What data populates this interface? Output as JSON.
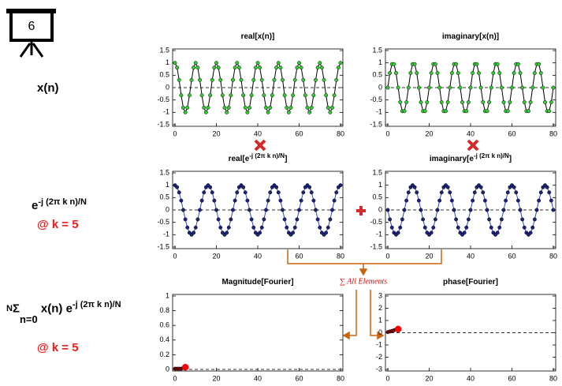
{
  "slide": {
    "number": "6"
  },
  "labels": {
    "signal": "x(n)",
    "kernel": {
      "base": "e",
      "exponent": "-j (2π k n)/N"
    },
    "k1": "@ k = 5",
    "sum": {
      "symbol": "Σ",
      "upper": "N",
      "lower": "n=0",
      "body": "x(n) e",
      "exponent": "-j (2π k n)/N"
    },
    "k2": "@ k = 5",
    "sum_note": "∑ All Elements"
  },
  "chart_data": [
    {
      "type": "line",
      "title": "real[x(n)]",
      "x": [
        0,
        1,
        2,
        3,
        4,
        5,
        6,
        7,
        8,
        9,
        10,
        11,
        12,
        13,
        14,
        15,
        16,
        17,
        18,
        19,
        20,
        21,
        22,
        23,
        24,
        25,
        26,
        27,
        28,
        29,
        30,
        31,
        32,
        33,
        34,
        35,
        36,
        37,
        38,
        39,
        40,
        41,
        42,
        43,
        44,
        45,
        46,
        47,
        48,
        49,
        50,
        51,
        52,
        53,
        54,
        55,
        56,
        57,
        58,
        59,
        60,
        61,
        62,
        63,
        64,
        65,
        66,
        67,
        68,
        69,
        70,
        71,
        72,
        73,
        74,
        75,
        76,
        77,
        78,
        79,
        80
      ],
      "series": [
        {
          "color": "#33cc33",
          "line_color": "#000000",
          "values": [
            1,
            0.81,
            0.31,
            -0.31,
            -0.81,
            -1,
            -0.81,
            -0.31,
            0.31,
            0.81,
            1,
            0.81,
            0.31,
            -0.31,
            -0.81,
            -1,
            -0.81,
            -0.31,
            0.31,
            0.81,
            1,
            0.81,
            0.31,
            -0.31,
            -0.81,
            -1,
            -0.81,
            -0.31,
            0.31,
            0.81,
            1,
            0.81,
            0.31,
            -0.31,
            -0.81,
            -1,
            -0.81,
            -0.31,
            0.31,
            0.81,
            1,
            0.81,
            0.31,
            -0.31,
            -0.81,
            -1,
            -0.81,
            -0.31,
            0.31,
            0.81,
            1,
            0.81,
            0.31,
            -0.31,
            -0.81,
            -1,
            -0.81,
            -0.31,
            0.31,
            0.81,
            1,
            0.81,
            0.31,
            -0.31,
            -0.81,
            -1,
            -0.81,
            -0.31,
            0.31,
            0.81,
            1,
            0.81,
            0.31,
            -0.31,
            -0.81,
            -1,
            -0.81,
            -0.31,
            0.31,
            0.81,
            1
          ]
        }
      ],
      "xlim": [
        0,
        80
      ],
      "xticks": [
        0,
        20,
        40,
        60,
        80
      ],
      "ylim": [
        -1.5,
        1.5
      ],
      "yticks": [
        -1.5,
        -1,
        -0.5,
        0,
        0.5,
        1,
        1.5
      ]
    },
    {
      "type": "line",
      "title": "imaginary[x(n)]",
      "x": [
        0,
        1,
        2,
        3,
        4,
        5,
        6,
        7,
        8,
        9,
        10,
        11,
        12,
        13,
        14,
        15,
        16,
        17,
        18,
        19,
        20,
        21,
        22,
        23,
        24,
        25,
        26,
        27,
        28,
        29,
        30,
        31,
        32,
        33,
        34,
        35,
        36,
        37,
        38,
        39,
        40,
        41,
        42,
        43,
        44,
        45,
        46,
        47,
        48,
        49,
        50,
        51,
        52,
        53,
        54,
        55,
        56,
        57,
        58,
        59,
        60,
        61,
        62,
        63,
        64,
        65,
        66,
        67,
        68,
        69,
        70,
        71,
        72,
        73,
        74,
        75,
        76,
        77,
        78,
        79,
        80
      ],
      "series": [
        {
          "color": "#33cc33",
          "line_color": "#000000",
          "values": [
            0,
            0.59,
            0.95,
            0.95,
            0.59,
            0,
            -0.59,
            -0.95,
            -0.95,
            -0.59,
            0,
            0.59,
            0.95,
            0.95,
            0.59,
            0,
            -0.59,
            -0.95,
            -0.95,
            -0.59,
            0,
            0.59,
            0.95,
            0.95,
            0.59,
            0,
            -0.59,
            -0.95,
            -0.95,
            -0.59,
            0,
            0.59,
            0.95,
            0.95,
            0.59,
            0,
            -0.59,
            -0.95,
            -0.95,
            -0.59,
            0,
            0.59,
            0.95,
            0.95,
            0.59,
            0,
            -0.59,
            -0.95,
            -0.95,
            -0.59,
            0,
            0.59,
            0.95,
            0.95,
            0.59,
            0,
            -0.59,
            -0.95,
            -0.95,
            -0.59,
            0,
            0.59,
            0.95,
            0.95,
            0.59,
            0,
            -0.59,
            -0.95,
            -0.95,
            -0.59,
            0,
            0.59,
            0.95,
            0.95,
            0.59,
            0,
            -0.59,
            -0.95,
            -0.95,
            -0.59,
            0
          ]
        }
      ],
      "xlim": [
        0,
        80
      ],
      "xticks": [
        0,
        20,
        40,
        60,
        80
      ],
      "ylim": [
        -1.5,
        1.5
      ],
      "yticks": [
        -1.5,
        -1,
        -0.5,
        0,
        0.5,
        1,
        1.5
      ]
    },
    {
      "type": "line",
      "title": [
        "real[e",
        "-j (2π k n)/N",
        "]"
      ],
      "x": [
        0,
        1,
        2,
        3,
        4,
        5,
        6,
        7,
        8,
        9,
        10,
        11,
        12,
        13,
        14,
        15,
        16,
        17,
        18,
        19,
        20,
        21,
        22,
        23,
        24,
        25,
        26,
        27,
        28,
        29,
        30,
        31,
        32,
        33,
        34,
        35,
        36,
        37,
        38,
        39,
        40,
        41,
        42,
        43,
        44,
        45,
        46,
        47,
        48,
        49,
        50,
        51,
        52,
        53,
        54,
        55,
        56,
        57,
        58,
        59,
        60,
        61,
        62,
        63,
        64,
        65,
        66,
        67,
        68,
        69,
        70,
        71,
        72,
        73,
        74,
        75,
        76,
        77,
        78,
        79,
        80
      ],
      "series": [
        {
          "color": "#1a237e",
          "line_color": "#3344cc",
          "values": [
            1,
            0.92,
            0.71,
            0.38,
            0,
            -0.38,
            -0.71,
            -0.92,
            -1,
            -0.92,
            -0.71,
            -0.38,
            0,
            0.38,
            0.71,
            0.92,
            1,
            0.92,
            0.71,
            0.38,
            0,
            -0.38,
            -0.71,
            -0.92,
            -1,
            -0.92,
            -0.71,
            -0.38,
            0,
            0.38,
            0.71,
            0.92,
            1,
            0.92,
            0.71,
            0.38,
            0,
            -0.38,
            -0.71,
            -0.92,
            -1,
            -0.92,
            -0.71,
            -0.38,
            0,
            0.38,
            0.71,
            0.92,
            1,
            0.92,
            0.71,
            0.38,
            0,
            -0.38,
            -0.71,
            -0.92,
            -1,
            -0.92,
            -0.71,
            -0.38,
            0,
            0.38,
            0.71,
            0.92,
            1,
            0.92,
            0.71,
            0.38,
            0,
            -0.38,
            -0.71,
            -0.92,
            -1,
            -0.92,
            -0.71,
            -0.38,
            0,
            0.38,
            0.71,
            0.92,
            1
          ]
        }
      ],
      "xlim": [
        0,
        80
      ],
      "xticks": [
        0,
        20,
        40,
        60,
        80
      ],
      "ylim": [
        -1.5,
        1.5
      ],
      "yticks": [
        -1.5,
        -1,
        -0.5,
        0,
        0.5,
        1,
        1.5
      ]
    },
    {
      "type": "line",
      "title": [
        "imaginary[e",
        "-j (2π k n)/N",
        "]"
      ],
      "x": [
        0,
        1,
        2,
        3,
        4,
        5,
        6,
        7,
        8,
        9,
        10,
        11,
        12,
        13,
        14,
        15,
        16,
        17,
        18,
        19,
        20,
        21,
        22,
        23,
        24,
        25,
        26,
        27,
        28,
        29,
        30,
        31,
        32,
        33,
        34,
        35,
        36,
        37,
        38,
        39,
        40,
        41,
        42,
        43,
        44,
        45,
        46,
        47,
        48,
        49,
        50,
        51,
        52,
        53,
        54,
        55,
        56,
        57,
        58,
        59,
        60,
        61,
        62,
        63,
        64,
        65,
        66,
        67,
        68,
        69,
        70,
        71,
        72,
        73,
        74,
        75,
        76,
        77,
        78,
        79,
        80
      ],
      "series": [
        {
          "color": "#1a237e",
          "line_color": "#3344cc",
          "values": [
            0,
            -0.38,
            -0.71,
            -0.92,
            -1,
            -0.92,
            -0.71,
            -0.38,
            0,
            0.38,
            0.71,
            0.92,
            1,
            0.92,
            0.71,
            0.38,
            0,
            -0.38,
            -0.71,
            -0.92,
            -1,
            -0.92,
            -0.71,
            -0.38,
            0,
            0.38,
            0.71,
            0.92,
            1,
            0.92,
            0.71,
            0.38,
            0,
            -0.38,
            -0.71,
            -0.92,
            -1,
            -0.92,
            -0.71,
            -0.38,
            0,
            0.38,
            0.71,
            0.92,
            1,
            0.92,
            0.71,
            0.38,
            0,
            -0.38,
            -0.71,
            -0.92,
            -1,
            -0.92,
            -0.71,
            -0.38,
            0,
            0.38,
            0.71,
            0.92,
            1,
            0.92,
            0.71,
            0.38,
            0,
            -0.38,
            -0.71,
            -0.92,
            -1,
            -0.92,
            -0.71,
            -0.38,
            0,
            0.38,
            0.71,
            0.92,
            1,
            0.92,
            0.71,
            0.38,
            0
          ]
        }
      ],
      "xlim": [
        0,
        80
      ],
      "xticks": [
        0,
        20,
        40,
        60,
        80
      ],
      "ylim": [
        -1.5,
        1.5
      ],
      "yticks": [
        -1.5,
        -1,
        -0.5,
        0,
        0.5,
        1,
        1.5
      ]
    },
    {
      "type": "line",
      "title": "Magnitude[Fourier]",
      "x": [
        0,
        1,
        2,
        3,
        4,
        5
      ],
      "series": [
        {
          "color": "#7a0000",
          "line_color": "#7a0000",
          "current_color": "#ff0000",
          "values": [
            0.01,
            0.01,
            0.01,
            0.01,
            0.02,
            0.03
          ]
        }
      ],
      "xlim": [
        0,
        80
      ],
      "xticks": [
        0,
        20,
        40,
        60,
        80
      ],
      "ylim": [
        0,
        1
      ],
      "yticks": [
        0,
        0.2,
        0.4,
        0.6,
        0.8,
        1
      ]
    },
    {
      "type": "line",
      "title": "phase[Fourier]",
      "x": [
        0,
        1,
        2,
        3,
        4,
        5
      ],
      "series": [
        {
          "color": "#7a0000",
          "line_color": "#7a0000",
          "current_color": "#ff0000",
          "values": [
            0.05,
            0.1,
            0.15,
            0.2,
            0.25,
            0.3
          ]
        }
      ],
      "xlim": [
        0,
        80
      ],
      "xticks": [
        0,
        20,
        40,
        60,
        80
      ],
      "ylim": [
        -3,
        3
      ],
      "yticks": [
        -3,
        -2,
        -1,
        0,
        1,
        2,
        3
      ]
    }
  ]
}
